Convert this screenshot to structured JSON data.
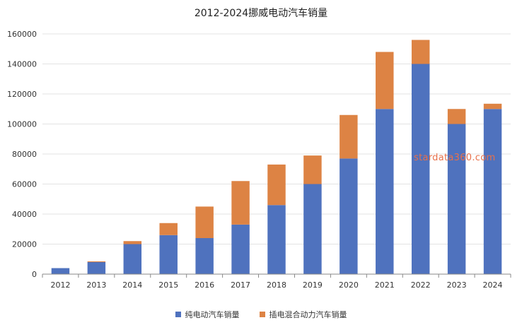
{
  "chart_data": {
    "type": "bar",
    "stacked": true,
    "title": "2012-2024挪威电动汽车销量",
    "categories": [
      "2012",
      "2013",
      "2014",
      "2015",
      "2016",
      "2017",
      "2018",
      "2019",
      "2020",
      "2021",
      "2022",
      "2023",
      "2024"
    ],
    "series": [
      {
        "name": "纯电动汽车销量",
        "color": "#4f72be",
        "values": [
          4000,
          8000,
          20000,
          26000,
          24000,
          33000,
          46000,
          60000,
          77000,
          110000,
          140000,
          100000,
          110000
        ]
      },
      {
        "name": "插电混合动力汽车销量",
        "color": "#dd8344",
        "values": [
          0,
          500,
          2000,
          8000,
          21000,
          29000,
          27000,
          19000,
          29000,
          38000,
          16000,
          10000,
          3500
        ]
      }
    ],
    "ylim": [
      0,
      160000
    ],
    "yticks": [
      0,
      20000,
      40000,
      60000,
      80000,
      100000,
      120000,
      140000,
      160000
    ],
    "grid": true,
    "legend_position": "bottom"
  },
  "watermark": "stardata360.com"
}
